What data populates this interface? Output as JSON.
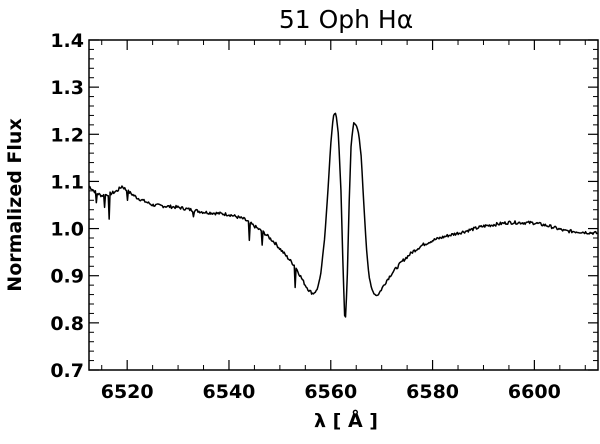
{
  "chart_data": {
    "type": "line",
    "title": "51 Oph Hα",
    "xlabel": "λ [ Å ]",
    "ylabel": "Normalized Flux",
    "xlim": [
      6512.5,
      6612.5
    ],
    "ylim": [
      0.7,
      1.4
    ],
    "xticks": [
      "6520",
      "6540",
      "6560",
      "6580",
      "6600"
    ],
    "yticks": [
      "0.7",
      "0.8",
      "0.9",
      "1.0",
      "1.1",
      "1.2",
      "1.3",
      "1.4"
    ],
    "grid": false,
    "series": [
      {
        "x": [
          6512.5,
          6514,
          6515,
          6516,
          6517,
          6518,
          6519,
          6520,
          6522,
          6525,
          6530,
          6535,
          6540,
          6543,
          6545,
          6547,
          6549,
          6551,
          6553,
          6554,
          6555,
          6555.8,
          6556.5,
          6557.3,
          6558,
          6558.8,
          6559.5,
          6560,
          6560.5,
          6561,
          6561.5,
          6562,
          6562.4,
          6562.8,
          6563.2,
          6563.6,
          6564,
          6564.5,
          6565,
          6565.5,
          6566,
          6566.5,
          6567,
          6567.5,
          6568,
          6568.5,
          6569,
          6569.5,
          6570,
          6571,
          6572,
          6574,
          6576,
          6578,
          6580,
          6583,
          6586,
          6590,
          6595,
          6600,
          6603,
          6606,
          6609,
          6612.5
        ],
        "y": [
          1.09,
          1.075,
          1.07,
          1.072,
          1.075,
          1.08,
          1.09,
          1.08,
          1.065,
          1.05,
          1.045,
          1.035,
          1.03,
          1.02,
          1.005,
          0.99,
          0.97,
          0.945,
          0.92,
          0.9,
          0.88,
          0.868,
          0.862,
          0.87,
          0.9,
          0.98,
          1.09,
          1.18,
          1.24,
          1.245,
          1.2,
          1.08,
          0.92,
          0.79,
          0.88,
          1.05,
          1.18,
          1.225,
          1.22,
          1.2,
          1.15,
          1.05,
          0.96,
          0.9,
          0.873,
          0.862,
          0.858,
          0.863,
          0.872,
          0.89,
          0.905,
          0.93,
          0.95,
          0.965,
          0.975,
          0.985,
          0.993,
          1.005,
          1.013,
          1.012,
          1.005,
          0.995,
          0.993,
          0.99
        ]
      }
    ],
    "absorption_dips": [
      {
        "x": 6514.0,
        "y": 1.055
      },
      {
        "x": 6515.5,
        "y": 1.045
      },
      {
        "x": 6516.5,
        "y": 1.02
      },
      {
        "x": 6520.0,
        "y": 1.06
      },
      {
        "x": 6533.0,
        "y": 1.025
      },
      {
        "x": 6544.0,
        "y": 0.975
      },
      {
        "x": 6546.5,
        "y": 0.965
      },
      {
        "x": 6553.0,
        "y": 0.875
      }
    ]
  }
}
